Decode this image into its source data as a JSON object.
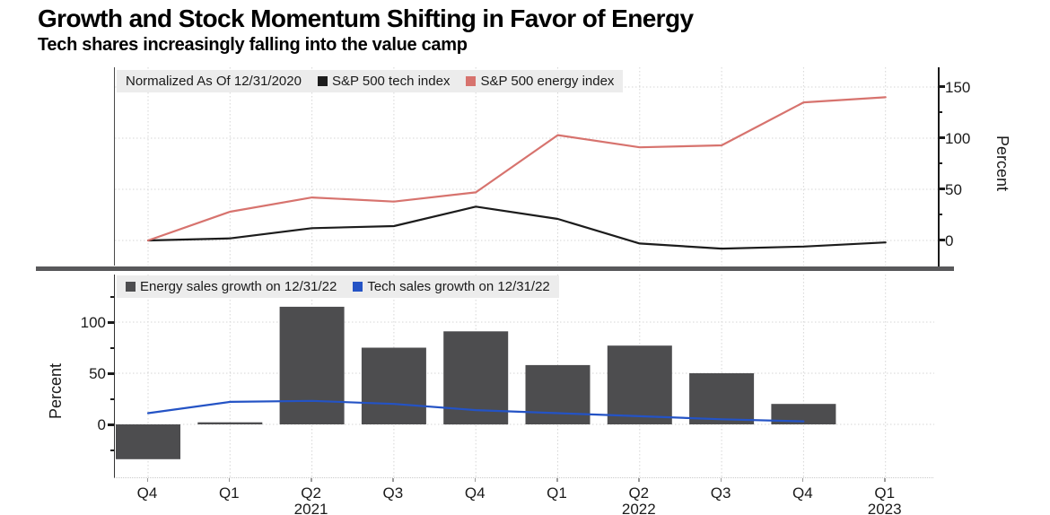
{
  "title": "Growth and Stock Momentum Shifting in Favor of Energy",
  "subtitle": "Tech shares increasingly falling into the value camp",
  "colors": {
    "tech_line": "#1c1c1c",
    "energy_line": "#d7736e",
    "energy_bar": "#4d4d4f",
    "tech_sales_line": "#2453c5",
    "legend_bg": "#ececec",
    "grid": "#d6d6d6",
    "divider": "#59595b"
  },
  "x_axis": {
    "labels": [
      "Q4",
      "Q1",
      "Q2",
      "Q3",
      "Q4",
      "Q1",
      "Q2",
      "Q3",
      "Q4",
      "Q1"
    ],
    "years": [
      {
        "text": "2021",
        "index": 2
      },
      {
        "text": "2022",
        "index": 6
      },
      {
        "text": "2023",
        "index": 9
      }
    ]
  },
  "chart_data": [
    {
      "type": "line",
      "panel": "top",
      "note": "Normalized As Of 12/31/2020",
      "categories": [
        "Q4 2020",
        "Q1 2021",
        "Q2 2021",
        "Q3 2021",
        "Q4 2021",
        "Q1 2022",
        "Q2 2022",
        "Q3 2022",
        "Q4 2022",
        "Q1 2023"
      ],
      "series": [
        {
          "name": "S&P 500 tech index",
          "color": "#1c1c1c",
          "values": [
            0,
            2,
            12,
            14,
            33,
            21,
            -3,
            -8,
            -6,
            -2
          ]
        },
        {
          "name": "S&P 500 energy index",
          "color": "#d7736e",
          "values": [
            0,
            28,
            42,
            38,
            47,
            103,
            91,
            93,
            135,
            140
          ]
        }
      ],
      "ylabel": "Percent",
      "yticks": [
        0,
        50,
        100,
        150
      ],
      "ylim": [
        -24.6,
        169.3
      ],
      "y_axis_side": "right",
      "grid": true,
      "legend_position": "top-left"
    },
    {
      "type": "bar",
      "panel": "bottom",
      "categories": [
        "Q4 2020",
        "Q1 2021",
        "Q2 2021",
        "Q3 2021",
        "Q4 2021",
        "Q1 2022",
        "Q2 2022",
        "Q3 2022",
        "Q4 2022",
        "Q1 2023"
      ],
      "series": [
        {
          "name": "Energy sales growth on 12/31/22",
          "type": "bar",
          "color": "#4d4d4f",
          "values": [
            -34,
            2,
            115,
            75,
            91,
            58,
            77,
            50,
            20,
            null
          ]
        },
        {
          "name": "Tech sales growth on 12/31/22",
          "type": "line",
          "color": "#2453c5",
          "values": [
            11,
            22,
            23,
            20,
            14,
            11,
            8,
            5,
            3,
            null
          ]
        }
      ],
      "ylabel": "Percent",
      "yticks": [
        0,
        50,
        100
      ],
      "ylim": [
        -52.6,
        146.5
      ],
      "y_axis_side": "left",
      "grid": true,
      "legend_position": "top-left"
    }
  ]
}
